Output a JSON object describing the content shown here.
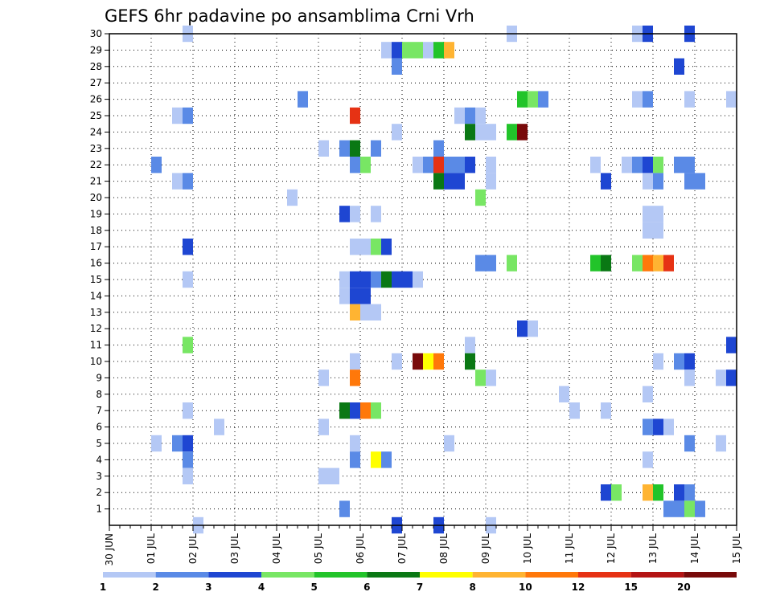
{
  "chart_data": {
    "type": "heatmap",
    "title": "GEFS 6hr padavine po ansamblima Crni Vrh",
    "xlabel": "",
    "ylabel": "",
    "grid": true,
    "legend_position": "bottom",
    "x_tick_labels": [
      "30 JUN",
      "01 JUL",
      "02 JUL",
      "03 JUL",
      "04 JUL",
      "05 JUL",
      "06 JUL",
      "07 JUL",
      "08 JUL",
      "09 JUL",
      "10 JUL",
      "11 JUL",
      "12 JUL",
      "13 JUL",
      "14 JUL",
      "15 JUL"
    ],
    "y_tick_labels": [
      "1",
      "2",
      "3",
      "4",
      "5",
      "6",
      "7",
      "8",
      "9",
      "10",
      "11",
      "12",
      "13",
      "14",
      "15",
      "16",
      "17",
      "18",
      "19",
      "20",
      "21",
      "22",
      "23",
      "24",
      "25",
      "26",
      "27",
      "28",
      "29",
      "30"
    ],
    "ylim": [
      0,
      30
    ],
    "x_range_days": [
      0,
      15
    ],
    "legend": {
      "labels": [
        "1",
        "2",
        "3",
        "4",
        "5",
        "6",
        "7",
        "8",
        "10",
        "12",
        "15",
        "20"
      ],
      "colors": [
        "#b4c8f5",
        "#5a8ae6",
        "#1e46d2",
        "#78e664",
        "#22c42a",
        "#0a7814",
        "#ffff00",
        "#ffb432",
        "#ff780a",
        "#e63214",
        "#b41414",
        "#780a0a"
      ]
    },
    "cells": [
      {
        "member": 30,
        "day": 1.875,
        "level": 0
      },
      {
        "member": 30,
        "day": 9.625,
        "level": 0
      },
      {
        "member": 30,
        "day": 12.625,
        "level": 0
      },
      {
        "member": 30,
        "day": 12.875,
        "level": 2
      },
      {
        "member": 30,
        "day": 13.875,
        "level": 2
      },
      {
        "member": 29,
        "day": 6.625,
        "level": 0
      },
      {
        "member": 29,
        "day": 6.875,
        "level": 2
      },
      {
        "member": 29,
        "day": 7.125,
        "level": 3
      },
      {
        "member": 29,
        "day": 7.375,
        "level": 3
      },
      {
        "member": 29,
        "day": 7.625,
        "level": 0
      },
      {
        "member": 29,
        "day": 7.875,
        "level": 4
      },
      {
        "member": 29,
        "day": 8.125,
        "level": 7
      },
      {
        "member": 28,
        "day": 6.875,
        "level": 1
      },
      {
        "member": 28,
        "day": 13.625,
        "level": 2
      },
      {
        "member": 26,
        "day": 4.625,
        "level": 1
      },
      {
        "member": 26,
        "day": 9.875,
        "level": 4
      },
      {
        "member": 26,
        "day": 10.125,
        "level": 3
      },
      {
        "member": 26,
        "day": 10.375,
        "level": 1
      },
      {
        "member": 26,
        "day": 12.625,
        "level": 0
      },
      {
        "member": 26,
        "day": 12.875,
        "level": 1
      },
      {
        "member": 26,
        "day": 13.875,
        "level": 0
      },
      {
        "member": 26,
        "day": 14.875,
        "level": 0
      },
      {
        "member": 25,
        "day": 1.625,
        "level": 0
      },
      {
        "member": 25,
        "day": 1.875,
        "level": 1
      },
      {
        "member": 25,
        "day": 5.875,
        "level": 9
      },
      {
        "member": 25,
        "day": 8.375,
        "level": 0
      },
      {
        "member": 25,
        "day": 8.625,
        "level": 1
      },
      {
        "member": 25,
        "day": 8.875,
        "level": 0
      },
      {
        "member": 24,
        "day": 6.875,
        "level": 0
      },
      {
        "member": 24,
        "day": 8.625,
        "level": 5
      },
      {
        "member": 24,
        "day": 8.875,
        "level": 0
      },
      {
        "member": 24,
        "day": 9.125,
        "level": 0
      },
      {
        "member": 24,
        "day": 9.625,
        "level": 4
      },
      {
        "member": 24,
        "day": 9.875,
        "level": 11
      },
      {
        "member": 23,
        "day": 5.125,
        "level": 0
      },
      {
        "member": 23,
        "day": 5.625,
        "level": 1
      },
      {
        "member": 23,
        "day": 5.875,
        "level": 5
      },
      {
        "member": 23,
        "day": 6.375,
        "level": 1
      },
      {
        "member": 23,
        "day": 7.875,
        "level": 1
      },
      {
        "member": 22,
        "day": 1.125,
        "level": 1
      },
      {
        "member": 22,
        "day": 5.875,
        "level": 1
      },
      {
        "member": 22,
        "day": 6.125,
        "level": 3
      },
      {
        "member": 22,
        "day": 7.375,
        "level": 0
      },
      {
        "member": 22,
        "day": 7.625,
        "level": 1
      },
      {
        "member": 22,
        "day": 7.875,
        "level": 9
      },
      {
        "member": 22,
        "day": 8.125,
        "level": 1
      },
      {
        "member": 22,
        "day": 8.375,
        "level": 1
      },
      {
        "member": 22,
        "day": 8.625,
        "level": 2
      },
      {
        "member": 22,
        "day": 9.125,
        "level": 0
      },
      {
        "member": 22,
        "day": 11.625,
        "level": 0
      },
      {
        "member": 22,
        "day": 12.375,
        "level": 0
      },
      {
        "member": 22,
        "day": 12.625,
        "level": 1
      },
      {
        "member": 22,
        "day": 12.875,
        "level": 2
      },
      {
        "member": 22,
        "day": 13.125,
        "level": 3
      },
      {
        "member": 22,
        "day": 13.625,
        "level": 1
      },
      {
        "member": 22,
        "day": 13.875,
        "level": 1
      },
      {
        "member": 21,
        "day": 1.625,
        "level": 0
      },
      {
        "member": 21,
        "day": 1.875,
        "level": 1
      },
      {
        "member": 21,
        "day": 7.875,
        "level": 5
      },
      {
        "member": 21,
        "day": 8.125,
        "level": 2
      },
      {
        "member": 21,
        "day": 8.375,
        "level": 2
      },
      {
        "member": 21,
        "day": 9.125,
        "level": 0
      },
      {
        "member": 21,
        "day": 11.875,
        "level": 2
      },
      {
        "member": 21,
        "day": 12.875,
        "level": 0
      },
      {
        "member": 21,
        "day": 13.125,
        "level": 1
      },
      {
        "member": 21,
        "day": 13.875,
        "level": 1
      },
      {
        "member": 21,
        "day": 14.125,
        "level": 1
      },
      {
        "member": 20,
        "day": 4.375,
        "level": 0
      },
      {
        "member": 20,
        "day": 8.875,
        "level": 3
      },
      {
        "member": 19,
        "day": 5.625,
        "level": 2
      },
      {
        "member": 19,
        "day": 5.875,
        "level": 0
      },
      {
        "member": 19,
        "day": 6.375,
        "level": 0
      },
      {
        "member": 19,
        "day": 12.875,
        "level": 0
      },
      {
        "member": 19,
        "day": 13.125,
        "level": 0
      },
      {
        "member": 18,
        "day": 12.875,
        "level": 0
      },
      {
        "member": 18,
        "day": 13.125,
        "level": 0
      },
      {
        "member": 17,
        "day": 1.875,
        "level": 2
      },
      {
        "member": 17,
        "day": 5.875,
        "level": 0
      },
      {
        "member": 17,
        "day": 6.125,
        "level": 0
      },
      {
        "member": 17,
        "day": 6.375,
        "level": 3
      },
      {
        "member": 17,
        "day": 6.625,
        "level": 2
      },
      {
        "member": 16,
        "day": 8.875,
        "level": 1
      },
      {
        "member": 16,
        "day": 9.125,
        "level": 1
      },
      {
        "member": 16,
        "day": 9.625,
        "level": 3
      },
      {
        "member": 16,
        "day": 11.625,
        "level": 4
      },
      {
        "member": 16,
        "day": 11.875,
        "level": 5
      },
      {
        "member": 16,
        "day": 12.625,
        "level": 3
      },
      {
        "member": 16,
        "day": 12.875,
        "level": 8
      },
      {
        "member": 16,
        "day": 13.125,
        "level": 7
      },
      {
        "member": 16,
        "day": 13.375,
        "level": 9
      },
      {
        "member": 15,
        "day": 1.875,
        "level": 0
      },
      {
        "member": 15,
        "day": 5.625,
        "level": 0
      },
      {
        "member": 15,
        "day": 5.875,
        "level": 2
      },
      {
        "member": 15,
        "day": 6.125,
        "level": 2
      },
      {
        "member": 15,
        "day": 6.375,
        "level": 1
      },
      {
        "member": 15,
        "day": 6.625,
        "level": 5
      },
      {
        "member": 15,
        "day": 6.875,
        "level": 2
      },
      {
        "member": 15,
        "day": 7.125,
        "level": 2
      },
      {
        "member": 15,
        "day": 7.375,
        "level": 0
      },
      {
        "member": 14,
        "day": 5.625,
        "level": 0
      },
      {
        "member": 14,
        "day": 5.875,
        "level": 2
      },
      {
        "member": 14,
        "day": 6.125,
        "level": 2
      },
      {
        "member": 13,
        "day": 5.875,
        "level": 7
      },
      {
        "member": 13,
        "day": 6.125,
        "level": 0
      },
      {
        "member": 13,
        "day": 6.375,
        "level": 0
      },
      {
        "member": 12,
        "day": 9.875,
        "level": 2
      },
      {
        "member": 12,
        "day": 10.125,
        "level": 0
      },
      {
        "member": 11,
        "day": 1.875,
        "level": 3
      },
      {
        "member": 11,
        "day": 8.625,
        "level": 0
      },
      {
        "member": 11,
        "day": 14.875,
        "level": 2
      },
      {
        "member": 10,
        "day": 5.875,
        "level": 0
      },
      {
        "member": 10,
        "day": 6.875,
        "level": 0
      },
      {
        "member": 10,
        "day": 7.375,
        "level": 11
      },
      {
        "member": 10,
        "day": 7.625,
        "level": 6
      },
      {
        "member": 10,
        "day": 7.875,
        "level": 8
      },
      {
        "member": 10,
        "day": 8.625,
        "level": 5
      },
      {
        "member": 10,
        "day": 13.125,
        "level": 0
      },
      {
        "member": 10,
        "day": 13.625,
        "level": 1
      },
      {
        "member": 10,
        "day": 13.875,
        "level": 2
      },
      {
        "member": 9,
        "day": 5.125,
        "level": 0
      },
      {
        "member": 9,
        "day": 5.875,
        "level": 8
      },
      {
        "member": 9,
        "day": 8.875,
        "level": 3
      },
      {
        "member": 9,
        "day": 9.125,
        "level": 0
      },
      {
        "member": 9,
        "day": 13.875,
        "level": 0
      },
      {
        "member": 9,
        "day": 14.625,
        "level": 0
      },
      {
        "member": 9,
        "day": 14.875,
        "level": 2
      },
      {
        "member": 8,
        "day": 10.875,
        "level": 0
      },
      {
        "member": 8,
        "day": 12.875,
        "level": 0
      },
      {
        "member": 7,
        "day": 1.875,
        "level": 0
      },
      {
        "member": 7,
        "day": 5.625,
        "level": 5
      },
      {
        "member": 7,
        "day": 5.875,
        "level": 2
      },
      {
        "member": 7,
        "day": 6.125,
        "level": 8
      },
      {
        "member": 7,
        "day": 6.375,
        "level": 3
      },
      {
        "member": 7,
        "day": 11.125,
        "level": 0
      },
      {
        "member": 7,
        "day": 11.875,
        "level": 0
      },
      {
        "member": 6,
        "day": 2.625,
        "level": 0
      },
      {
        "member": 6,
        "day": 5.125,
        "level": 0
      },
      {
        "member": 6,
        "day": 12.875,
        "level": 1
      },
      {
        "member": 6,
        "day": 13.125,
        "level": 2
      },
      {
        "member": 6,
        "day": 13.375,
        "level": 0
      },
      {
        "member": 5,
        "day": 1.125,
        "level": 0
      },
      {
        "member": 5,
        "day": 1.625,
        "level": 1
      },
      {
        "member": 5,
        "day": 1.875,
        "level": 2
      },
      {
        "member": 5,
        "day": 5.875,
        "level": 0
      },
      {
        "member": 5,
        "day": 8.125,
        "level": 0
      },
      {
        "member": 5,
        "day": 13.875,
        "level": 1
      },
      {
        "member": 5,
        "day": 14.625,
        "level": 0
      },
      {
        "member": 4,
        "day": 1.875,
        "level": 1
      },
      {
        "member": 4,
        "day": 5.875,
        "level": 1
      },
      {
        "member": 4,
        "day": 6.375,
        "level": 6
      },
      {
        "member": 4,
        "day": 6.625,
        "level": 1
      },
      {
        "member": 4,
        "day": 12.875,
        "level": 0
      },
      {
        "member": 3,
        "day": 1.875,
        "level": 0
      },
      {
        "member": 3,
        "day": 5.125,
        "level": 0
      },
      {
        "member": 3,
        "day": 5.375,
        "level": 0
      },
      {
        "member": 2,
        "day": 11.875,
        "level": 2
      },
      {
        "member": 2,
        "day": 12.125,
        "level": 3
      },
      {
        "member": 2,
        "day": 12.875,
        "level": 7
      },
      {
        "member": 2,
        "day": 13.125,
        "level": 4
      },
      {
        "member": 2,
        "day": 13.625,
        "level": 2
      },
      {
        "member": 2,
        "day": 13.875,
        "level": 1
      },
      {
        "member": 1,
        "day": 5.625,
        "level": 1
      },
      {
        "member": 1,
        "day": 13.375,
        "level": 1
      },
      {
        "member": 1,
        "day": 13.625,
        "level": 1
      },
      {
        "member": 1,
        "day": 13.875,
        "level": 3
      },
      {
        "member": 1,
        "day": 14.125,
        "level": 1
      },
      {
        "member": 0,
        "day": 2.125,
        "level": 0
      },
      {
        "member": 0,
        "day": 6.875,
        "level": 2
      },
      {
        "member": 0,
        "day": 7.875,
        "level": 2
      },
      {
        "member": 0,
        "day": 9.125,
        "level": 0
      }
    ]
  }
}
